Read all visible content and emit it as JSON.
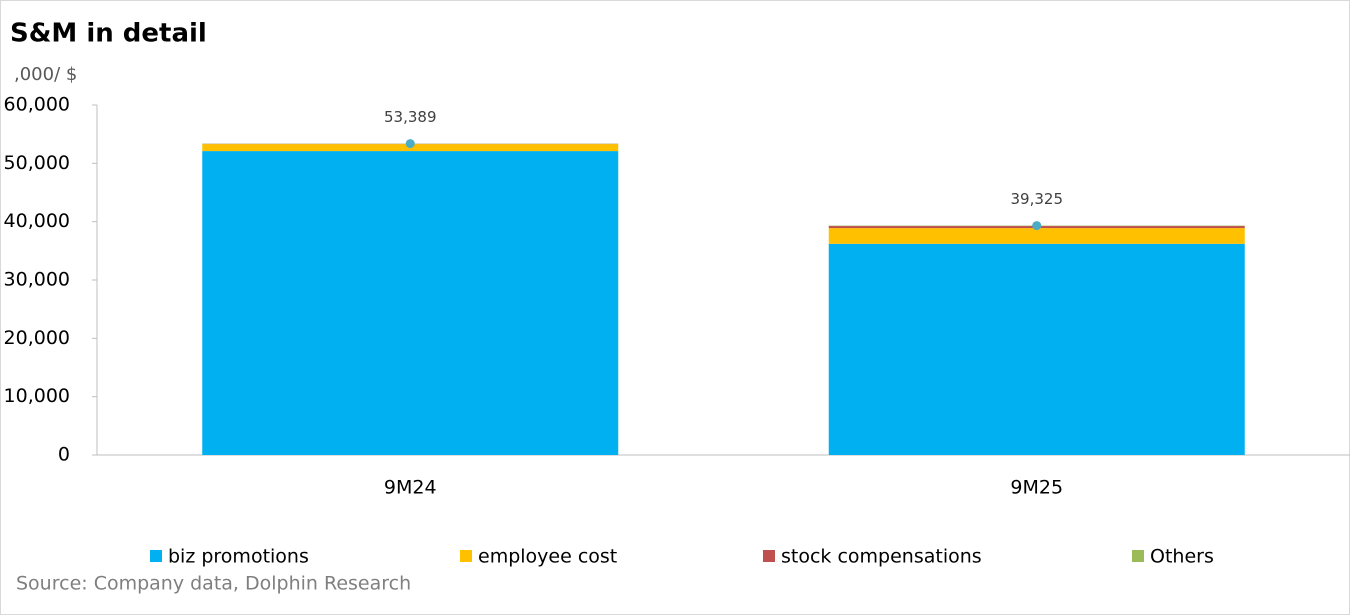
{
  "chart_data": {
    "type": "stacked-bar",
    "title": "S&M in detail",
    "y_unit_label": ",000/ $",
    "source": "Source:  Company data, Dolphin Research",
    "categories": [
      "9M24",
      "9M25"
    ],
    "series": [
      {
        "name": "biz promotions",
        "color": "#00b0f0",
        "values": [
          52100,
          36200
        ]
      },
      {
        "name": "employee cost",
        "color": "#ffc000",
        "values": [
          1200,
          2700
        ]
      },
      {
        "name": "stock compensations",
        "color": "#c0504d",
        "values": [
          50,
          350
        ]
      },
      {
        "name": "Others",
        "color": "#9bbb59",
        "values": [
          39,
          75
        ]
      }
    ],
    "totals": {
      "values": [
        53389,
        39325
      ],
      "value_labels": [
        "53,389",
        "39,325"
      ],
      "color": "#4bacc6"
    },
    "ylim": [
      0,
      60000
    ],
    "yticks": [
      0,
      {
        "value": 10000,
        "label": "10,000"
      },
      {
        "value": 20000,
        "label": "20,000"
      },
      {
        "value": 30000,
        "label": "30,000"
      },
      {
        "value": 40000,
        "label": "40,000"
      },
      {
        "value": 50000,
        "label": "50,000"
      },
      {
        "value": 60000,
        "label": "60,000"
      }
    ],
    "grid": false,
    "legend": "bottom"
  }
}
